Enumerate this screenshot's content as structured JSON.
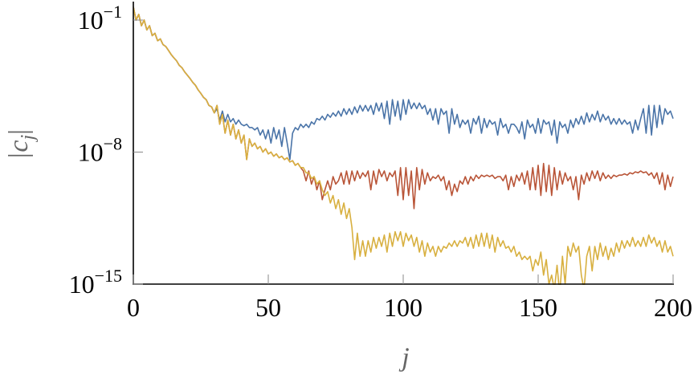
{
  "chart_data": {
    "type": "line",
    "log_y": true,
    "xlabel": "j",
    "ylabel": {
      "left": "|c",
      "sub": "j",
      "right": "|"
    },
    "xlim": [
      0,
      200
    ],
    "xticks": [
      0,
      50,
      100,
      150,
      200
    ],
    "ylim": [
      1e-15,
      1
    ],
    "yticks": [
      {
        "value": 0.1,
        "label": "10",
        "exponent": "−1"
      },
      {
        "value": 1e-08,
        "label": "10",
        "exponent": "−8"
      },
      {
        "value": 1e-15,
        "label": "10",
        "exponent": "−15"
      }
    ],
    "x": [
      0,
      1,
      2,
      3,
      4,
      5,
      6,
      7,
      8,
      9,
      10,
      11,
      12,
      13,
      14,
      15,
      16,
      17,
      18,
      19,
      20,
      21,
      22,
      23,
      24,
      25,
      26,
      27,
      28,
      29,
      30,
      31,
      32,
      33,
      34,
      35,
      36,
      37,
      38,
      39,
      40,
      41,
      42,
      43,
      44,
      45,
      46,
      47,
      48,
      49,
      50,
      51,
      52,
      53,
      54,
      55,
      56,
      57,
      58,
      59,
      60,
      61,
      62,
      63,
      64,
      65,
      66,
      67,
      68,
      69,
      70,
      71,
      72,
      73,
      74,
      75,
      76,
      77,
      78,
      79,
      80,
      81,
      82,
      83,
      84,
      85,
      86,
      87,
      88,
      89,
      90,
      91,
      92,
      93,
      94,
      95,
      96,
      97,
      98,
      99,
      100,
      101,
      102,
      103,
      104,
      105,
      106,
      107,
      108,
      109,
      110,
      111,
      112,
      113,
      114,
      115,
      116,
      117,
      118,
      119,
      120,
      121,
      122,
      123,
      124,
      125,
      126,
      127,
      128,
      129,
      130,
      131,
      132,
      133,
      134,
      135,
      136,
      137,
      138,
      139,
      140,
      141,
      142,
      143,
      144,
      145,
      146,
      147,
      148,
      149,
      150,
      151,
      152,
      153,
      154,
      155,
      156,
      157,
      158,
      159,
      160,
      161,
      162,
      163,
      164,
      165,
      166,
      167,
      168,
      169,
      170,
      171,
      172,
      173,
      174,
      175,
      176,
      177,
      178,
      179,
      180,
      181,
      182,
      183,
      184,
      185,
      186,
      187,
      188,
      189,
      190,
      191,
      192,
      193,
      194,
      195,
      196,
      197,
      198,
      199,
      200
    ],
    "series": [
      {
        "color": "#4a74a8",
        "values": [
          0.5,
          0.1,
          0.2,
          0.05,
          0.1,
          0.03,
          0.05,
          0.015,
          0.02,
          0.008,
          0.01,
          0.005,
          0.004,
          0.0025,
          0.0015,
          0.001,
          0.0007,
          0.0004,
          0.0003,
          0.00018,
          0.00012,
          8e-05,
          5e-05,
          3.5e-05,
          2e-05,
          1.3e-05,
          8e-06,
          6e-06,
          3e-06,
          2.5e-06,
          1.2e-06,
          2e-06,
          5e-07,
          1.5e-06,
          4e-07,
          1e-06,
          4e-07,
          6e-07,
          3e-07,
          5e-07,
          3e-07,
          2.5e-07,
          3e-07,
          2e-07,
          2e-07,
          1.5e-07,
          2e-07,
          8e-08,
          1.5e-07,
          5e-08,
          1.5e-07,
          3e-08,
          2e-07,
          5e-08,
          1.5e-07,
          2e-08,
          2e-07,
          3e-08,
          4e-09,
          1e-07,
          2e-07,
          1.5e-07,
          3e-07,
          2e-07,
          3e-07,
          2e-07,
          4e-07,
          3e-07,
          6e-07,
          5e-07,
          8e-07,
          5e-07,
          1e-06,
          7e-07,
          1.2e-06,
          8e-07,
          1.5e-06,
          8e-07,
          2e-06,
          1e-06,
          2e-06,
          1e-06,
          2.5e-06,
          1.2e-06,
          3e-06,
          1.5e-06,
          3e-06,
          1.5e-06,
          3e-06,
          1e-06,
          4e-06,
          1.5e-06,
          4e-06,
          6e-07,
          5e-06,
          3e-07,
          6e-06,
          8e-07,
          5e-06,
          5e-07,
          6e-06,
          1e-06,
          6e-06,
          2e-06,
          4e-06,
          2e-06,
          4e-06,
          2e-06,
          3e-06,
          1e-06,
          2e-06,
          5e-07,
          2e-06,
          3e-07,
          2e-06,
          1e-06,
          1.5e-06,
          1e-07,
          2e-06,
          3e-07,
          1e-06,
          2e-07,
          5e-07,
          3e-07,
          5e-07,
          1e-07,
          6e-07,
          3e-07,
          8e-07,
          1e-07,
          6e-07,
          2e-07,
          5e-07,
          3e-07,
          4e-07,
          8e-08,
          6e-07,
          2e-07,
          3e-07,
          1e-07,
          3e-07,
          3e-07,
          2e-07,
          1e-07,
          4e-07,
          5e-08,
          5e-07,
          2e-07,
          3e-07,
          1e-07,
          6e-07,
          1e-07,
          5e-07,
          3e-07,
          4e-07,
          8e-08,
          5e-07,
          3e-08,
          4e-07,
          2e-07,
          3e-07,
          1e-07,
          5e-07,
          2e-07,
          6e-07,
          3e-07,
          8e-07,
          3e-07,
          1.2e-06,
          4e-07,
          1e-06,
          5e-07,
          1.5e-06,
          4e-07,
          1e-06,
          5e-07,
          8e-07,
          3e-07,
          6e-07,
          3e-07,
          6e-07,
          3e-07,
          5e-07,
          3e-07,
          4e-07,
          1e-07,
          5e-07,
          1.5e-07,
          6e-07,
          2e-06,
          1e-07,
          3e-06,
          8e-08,
          3e-06,
          2e-07,
          3e-06,
          3e-07,
          2e-06,
          1e-06,
          1.5e-06,
          6e-07
        ]
      },
      {
        "color": "#b95538",
        "values": [
          0.5,
          0.1,
          0.2,
          0.05,
          0.1,
          0.03,
          0.05,
          0.015,
          0.02,
          0.008,
          0.01,
          0.005,
          0.004,
          0.0025,
          0.0015,
          0.001,
          0.0007,
          0.0004,
          0.0003,
          0.00018,
          0.00012,
          8e-05,
          5e-05,
          3.5e-05,
          2e-05,
          1.3e-05,
          8e-06,
          6e-06,
          3e-06,
          2.5e-06,
          1.2e-06,
          3e-06,
          3e-07,
          1e-06,
          1e-07,
          5e-07,
          8e-08,
          3e-07,
          5e-08,
          1.5e-07,
          3e-08,
          8e-08,
          4e-09,
          5e-08,
          2e-08,
          3e-08,
          1.5e-08,
          2e-08,
          1e-08,
          1.5e-08,
          8e-09,
          1e-08,
          6e-09,
          8e-09,
          5e-09,
          6e-09,
          4e-09,
          5e-09,
          3e-09,
          3.5e-09,
          2e-09,
          2.5e-09,
          1.5e-09,
          1e-09,
          3e-10,
          1e-09,
          2e-10,
          5e-10,
          1e-10,
          3e-10,
          3e-11,
          1e-10,
          3e-10,
          1e-10,
          5e-10,
          2e-10,
          3e-10,
          8e-10,
          2e-10,
          1e-09,
          2e-10,
          1e-09,
          3e-10,
          1e-09,
          4e-10,
          8e-10,
          5e-10,
          1e-09,
          1e-10,
          1e-09,
          2e-10,
          1.2e-09,
          5e-10,
          1e-09,
          3e-10,
          8e-10,
          5e-10,
          1e-09,
          5e-11,
          1.5e-09,
          3e-11,
          1.5e-09,
          5e-11,
          1e-09,
          1e-11,
          1.5e-09,
          1e-10,
          1.2e-09,
          2e-10,
          8e-10,
          3e-10,
          5e-10,
          4e-10,
          6e-10,
          3e-10,
          5e-10,
          1e-10,
          3e-10,
          5e-11,
          2e-10,
          8e-11,
          3e-10,
          2e-10,
          5e-10,
          2e-10,
          5e-10,
          3e-10,
          6e-10,
          4e-10,
          6e-10,
          5e-10,
          6e-10,
          5e-10,
          6e-10,
          4e-10,
          5e-10,
          5e-10,
          3e-10,
          6e-10,
          1e-10,
          5e-10,
          1.5e-10,
          6e-10,
          3e-10,
          8e-10,
          2e-10,
          1e-09,
          1e-10,
          1.5e-09,
          1e-10,
          2e-09,
          5e-11,
          2.5e-09,
          8e-11,
          2e-09,
          5e-11,
          1.5e-09,
          1e-10,
          1e-09,
          2e-10,
          8e-10,
          3e-10,
          5e-10,
          1e-10,
          5e-10,
          3e-11,
          6e-10,
          2e-10,
          8e-10,
          3e-10,
          1e-09,
          4e-10,
          1e-09,
          3e-10,
          8e-10,
          4e-10,
          6e-10,
          4e-10,
          6e-10,
          5e-10,
          6e-10,
          6e-10,
          7e-10,
          6e-10,
          8e-10,
          7e-10,
          9e-10,
          8e-10,
          1e-09,
          8e-10,
          9e-10,
          6e-10,
          8e-10,
          4e-10,
          8e-10,
          2e-10,
          8e-10,
          1e-10,
          6e-10,
          1.5e-10,
          5e-10
        ]
      },
      {
        "color": "#d8b040",
        "values": [
          0.5,
          0.1,
          0.2,
          0.05,
          0.1,
          0.03,
          0.05,
          0.015,
          0.02,
          0.008,
          0.01,
          0.005,
          0.004,
          0.0025,
          0.0015,
          0.001,
          0.0007,
          0.0004,
          0.0003,
          0.00018,
          0.00012,
          8e-05,
          5e-05,
          3.5e-05,
          2e-05,
          1.3e-05,
          8e-06,
          6e-06,
          3e-06,
          2.5e-06,
          1.2e-06,
          3e-06,
          3e-07,
          1e-06,
          1e-07,
          5e-07,
          8e-08,
          3e-07,
          5e-08,
          1.5e-07,
          3e-08,
          8e-08,
          4e-09,
          5e-08,
          2e-08,
          3e-08,
          1.5e-08,
          2e-08,
          1e-08,
          1.5e-08,
          8e-09,
          1e-08,
          6e-09,
          8e-09,
          5e-09,
          6e-09,
          4e-09,
          5e-09,
          3e-09,
          3.5e-09,
          2e-09,
          2.5e-09,
          1.5e-09,
          1.5e-09,
          8e-10,
          8e-10,
          4e-10,
          5e-10,
          2e-10,
          3e-10,
          1e-10,
          5e-11,
          8e-11,
          2e-11,
          5e-11,
          1e-11,
          3e-11,
          5e-12,
          2e-11,
          3e-12,
          1e-11,
          1e-12,
          2e-14,
          5e-13,
          3e-14,
          2e-13,
          3e-14,
          2e-13,
          5e-14,
          3e-13,
          8e-14,
          3e-13,
          1e-13,
          4e-13,
          5e-14,
          5e-13,
          1e-13,
          6e-13,
          2e-13,
          6e-13,
          1e-13,
          5e-13,
          2e-13,
          4e-13,
          1e-13,
          3e-13,
          5e-14,
          2e-13,
          3e-14,
          1.5e-13,
          5e-14,
          1e-13,
          3e-14,
          1e-13,
          5e-14,
          1e-13,
          8e-14,
          1.5e-13,
          1e-13,
          2e-13,
          1e-13,
          2e-13,
          1.5e-13,
          3e-13,
          1e-13,
          3e-13,
          8e-14,
          4e-13,
          1e-13,
          5e-13,
          1e-13,
          5e-13,
          8e-14,
          4e-13,
          5e-14,
          3e-13,
          1e-13,
          2e-13,
          8e-14,
          1e-13,
          5e-14,
          1e-13,
          3e-14,
          5e-14,
          2e-14,
          3e-14,
          2e-14,
          3e-14,
          5e-15,
          2e-14,
          1e-14,
          5e-14,
          3e-15,
          2e-14,
          1e-15,
          3e-15,
          5e-16,
          1e-14,
          3e-16,
          3e-14,
          1e-15,
          1e-13,
          3e-14,
          1.5e-13,
          5e-14,
          1e-13,
          3e-15,
          5e-16,
          3e-14,
          1e-13,
          5e-15,
          1e-13,
          2e-14,
          1.5e-13,
          3e-14,
          1e-13,
          2e-14,
          8e-14,
          3e-14,
          1.5e-13,
          5e-14,
          2e-13,
          8e-14,
          2e-13,
          1e-13,
          3e-13,
          1e-13,
          2e-13,
          1e-13,
          3e-13,
          1e-13,
          4e-13,
          1.5e-13,
          3e-13,
          1e-13,
          2e-13,
          5e-14,
          2e-13,
          5e-14,
          1e-13,
          3e-14
        ]
      }
    ]
  }
}
